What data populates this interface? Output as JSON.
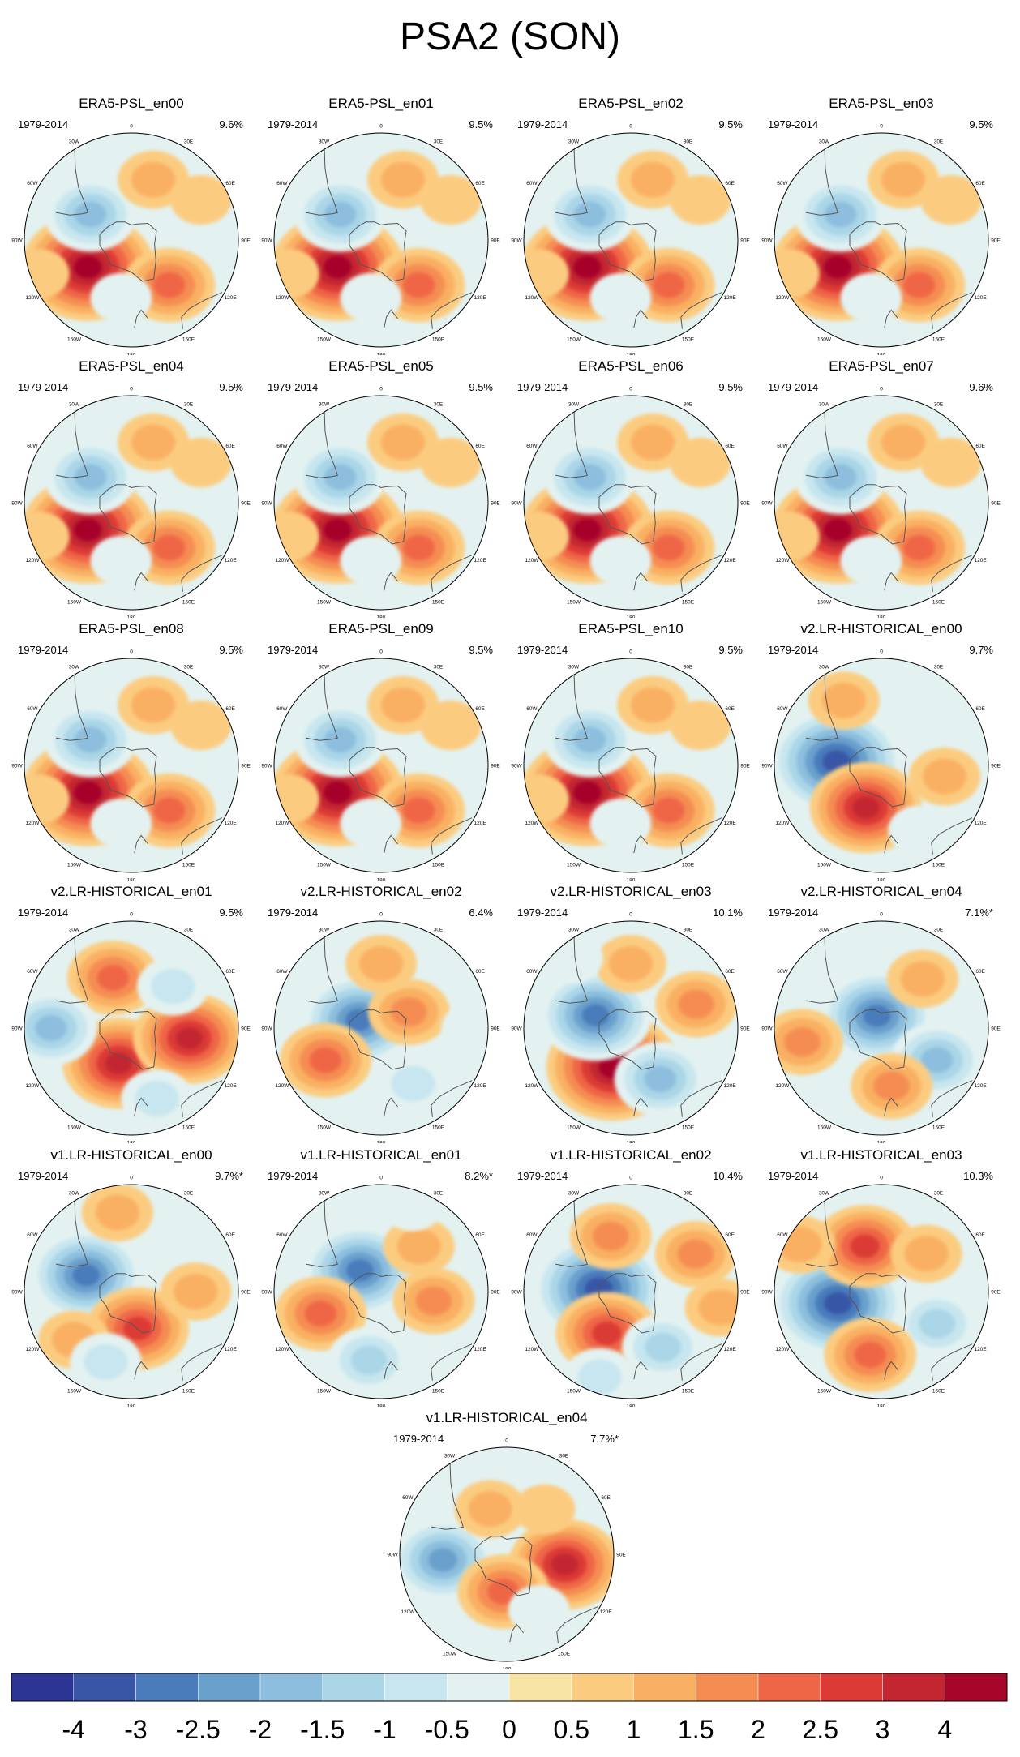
{
  "title": "PSA2 (SON)",
  "period": "1979-2014",
  "longitude_labels": [
    "0",
    "30E",
    "60E",
    "90E",
    "120E",
    "150E",
    "180",
    "150W",
    "120W",
    "90W",
    "60W",
    "30W"
  ],
  "chart_data": {
    "type": "heatmap",
    "projection": "south-polar-stereographic",
    "title": "PSA2 (SON)",
    "panels": [
      {
        "name": "ERA5-PSL_en00",
        "period": "1979-2014",
        "variance": "9.6%",
        "features": [
          {
            "lon": -122,
            "r": 0.48,
            "v": 4
          },
          {
            "lon": -58,
            "r": 0.45,
            "v": -2
          },
          {
            "lon": 140,
            "r": 0.55,
            "v": 2
          },
          {
            "lon": -170,
            "r": 0.55,
            "v": -0.5
          },
          {
            "lon": 20,
            "r": 0.6,
            "v": 1
          },
          {
            "lon": 60,
            "r": 0.75,
            "v": 0.5
          },
          {
            "lon": -110,
            "r": 0.92,
            "v": 0.5
          }
        ]
      },
      {
        "name": "ERA5-PSL_en01",
        "period": "1979-2014",
        "variance": "9.5%",
        "features": [
          {
            "lon": -122,
            "r": 0.48,
            "v": 4
          },
          {
            "lon": -58,
            "r": 0.45,
            "v": -2
          },
          {
            "lon": 140,
            "r": 0.55,
            "v": 2
          },
          {
            "lon": -170,
            "r": 0.55,
            "v": -0.5
          },
          {
            "lon": 20,
            "r": 0.6,
            "v": 1
          },
          {
            "lon": 60,
            "r": 0.75,
            "v": 0.5
          },
          {
            "lon": -110,
            "r": 0.92,
            "v": 0.5
          }
        ]
      },
      {
        "name": "ERA5-PSL_en02",
        "period": "1979-2014",
        "variance": "9.5%",
        "features": [
          {
            "lon": -122,
            "r": 0.48,
            "v": 4
          },
          {
            "lon": -58,
            "r": 0.45,
            "v": -2
          },
          {
            "lon": 140,
            "r": 0.55,
            "v": 2
          },
          {
            "lon": -170,
            "r": 0.55,
            "v": -0.5
          },
          {
            "lon": 20,
            "r": 0.6,
            "v": 1
          },
          {
            "lon": 60,
            "r": 0.75,
            "v": 0.5
          },
          {
            "lon": -110,
            "r": 0.92,
            "v": 0.5
          }
        ]
      },
      {
        "name": "ERA5-PSL_en03",
        "period": "1979-2014",
        "variance": "9.5%",
        "features": [
          {
            "lon": -122,
            "r": 0.48,
            "v": 4
          },
          {
            "lon": -58,
            "r": 0.45,
            "v": -2
          },
          {
            "lon": 140,
            "r": 0.55,
            "v": 2
          },
          {
            "lon": -170,
            "r": 0.55,
            "v": -0.5
          },
          {
            "lon": 20,
            "r": 0.6,
            "v": 1
          },
          {
            "lon": 60,
            "r": 0.75,
            "v": 0.5
          },
          {
            "lon": -110,
            "r": 0.92,
            "v": 0.5
          }
        ]
      },
      {
        "name": "ERA5-PSL_en04",
        "period": "1979-2014",
        "variance": "9.5%",
        "features": [
          {
            "lon": -122,
            "r": 0.48,
            "v": 4
          },
          {
            "lon": -58,
            "r": 0.45,
            "v": -2
          },
          {
            "lon": 140,
            "r": 0.55,
            "v": 2
          },
          {
            "lon": -170,
            "r": 0.55,
            "v": -0.5
          },
          {
            "lon": 20,
            "r": 0.6,
            "v": 1
          },
          {
            "lon": 60,
            "r": 0.75,
            "v": 0.5
          },
          {
            "lon": -110,
            "r": 0.92,
            "v": 0.5
          }
        ]
      },
      {
        "name": "ERA5-PSL_en05",
        "period": "1979-2014",
        "variance": "9.5%",
        "features": [
          {
            "lon": -122,
            "r": 0.48,
            "v": 4
          },
          {
            "lon": -58,
            "r": 0.45,
            "v": -2
          },
          {
            "lon": 140,
            "r": 0.55,
            "v": 2
          },
          {
            "lon": -170,
            "r": 0.55,
            "v": -0.5
          },
          {
            "lon": 20,
            "r": 0.6,
            "v": 1
          },
          {
            "lon": 60,
            "r": 0.75,
            "v": 0.5
          },
          {
            "lon": -110,
            "r": 0.92,
            "v": 0.5
          }
        ]
      },
      {
        "name": "ERA5-PSL_en06",
        "period": "1979-2014",
        "variance": "9.5%",
        "features": [
          {
            "lon": -122,
            "r": 0.48,
            "v": 4
          },
          {
            "lon": -58,
            "r": 0.45,
            "v": -2
          },
          {
            "lon": 140,
            "r": 0.55,
            "v": 2
          },
          {
            "lon": -170,
            "r": 0.55,
            "v": -0.5
          },
          {
            "lon": 20,
            "r": 0.6,
            "v": 1
          },
          {
            "lon": 60,
            "r": 0.75,
            "v": 0.5
          },
          {
            "lon": -110,
            "r": 0.92,
            "v": 0.5
          }
        ]
      },
      {
        "name": "ERA5-PSL_en07",
        "period": "1979-2014",
        "variance": "9.6%",
        "features": [
          {
            "lon": -122,
            "r": 0.48,
            "v": 4
          },
          {
            "lon": -58,
            "r": 0.45,
            "v": -2
          },
          {
            "lon": 140,
            "r": 0.55,
            "v": 2
          },
          {
            "lon": -170,
            "r": 0.55,
            "v": -0.5
          },
          {
            "lon": 20,
            "r": 0.6,
            "v": 1
          },
          {
            "lon": 60,
            "r": 0.75,
            "v": 0.5
          },
          {
            "lon": -110,
            "r": 0.92,
            "v": 0.5
          }
        ]
      },
      {
        "name": "ERA5-PSL_en08",
        "period": "1979-2014",
        "variance": "9.5%",
        "features": [
          {
            "lon": -122,
            "r": 0.48,
            "v": 4
          },
          {
            "lon": -58,
            "r": 0.45,
            "v": -2
          },
          {
            "lon": 140,
            "r": 0.55,
            "v": 2
          },
          {
            "lon": -170,
            "r": 0.55,
            "v": -0.5
          },
          {
            "lon": 20,
            "r": 0.6,
            "v": 1
          },
          {
            "lon": 60,
            "r": 0.75,
            "v": 0.5
          },
          {
            "lon": -110,
            "r": 0.92,
            "v": 0.5
          }
        ]
      },
      {
        "name": "ERA5-PSL_en09",
        "period": "1979-2014",
        "variance": "9.5%",
        "features": [
          {
            "lon": -122,
            "r": 0.48,
            "v": 4
          },
          {
            "lon": -58,
            "r": 0.45,
            "v": -2
          },
          {
            "lon": 140,
            "r": 0.55,
            "v": 2
          },
          {
            "lon": -170,
            "r": 0.55,
            "v": -0.5
          },
          {
            "lon": 20,
            "r": 0.6,
            "v": 1
          },
          {
            "lon": 60,
            "r": 0.75,
            "v": 0.5
          },
          {
            "lon": -110,
            "r": 0.92,
            "v": 0.5
          }
        ]
      },
      {
        "name": "ERA5-PSL_en10",
        "period": "1979-2014",
        "variance": "9.5%",
        "features": [
          {
            "lon": -122,
            "r": 0.48,
            "v": 4
          },
          {
            "lon": -58,
            "r": 0.45,
            "v": -2
          },
          {
            "lon": 140,
            "r": 0.55,
            "v": 2
          },
          {
            "lon": -170,
            "r": 0.55,
            "v": -0.5
          },
          {
            "lon": 20,
            "r": 0.6,
            "v": 1
          },
          {
            "lon": 60,
            "r": 0.75,
            "v": 0.5
          },
          {
            "lon": -110,
            "r": 0.92,
            "v": 0.5
          }
        ]
      },
      {
        "name": "v2.LR-HISTORICAL_en00",
        "period": "1979-2014",
        "variance": "9.7%",
        "features": [
          {
            "lon": -85,
            "r": 0.42,
            "v": -4
          },
          {
            "lon": -160,
            "r": 0.42,
            "v": 3
          },
          {
            "lon": 40,
            "r": 0.7,
            "v": -0.5
          },
          {
            "lon": 100,
            "r": 0.6,
            "v": 1
          },
          {
            "lon": -30,
            "r": 0.7,
            "v": 1
          },
          {
            "lon": 150,
            "r": 0.7,
            "v": -0.5
          }
        ]
      },
      {
        "name": "v2.LR-HISTORICAL_en01",
        "period": "1979-2014",
        "variance": "9.5%",
        "features": [
          {
            "lon": -160,
            "r": 0.35,
            "v": 3
          },
          {
            "lon": 100,
            "r": 0.55,
            "v": 3
          },
          {
            "lon": -20,
            "r": 0.5,
            "v": 2
          },
          {
            "lon": -90,
            "r": 0.75,
            "v": -2
          },
          {
            "lon": 45,
            "r": 0.55,
            "v": -1
          },
          {
            "lon": 160,
            "r": 0.7,
            "v": -1
          }
        ]
      },
      {
        "name": "v2.LR-HISTORICAL_en02",
        "period": "1979-2014",
        "variance": "6.4%",
        "features": [
          {
            "lon": -70,
            "r": 0.22,
            "v": -3
          },
          {
            "lon": 60,
            "r": 0.3,
            "v": 1.5
          },
          {
            "lon": -120,
            "r": 0.6,
            "v": 2
          },
          {
            "lon": 0,
            "r": 0.6,
            "v": 1
          },
          {
            "lon": 150,
            "r": 0.6,
            "v": -1
          },
          {
            "lon": 90,
            "r": 0.85,
            "v": -0.5
          }
        ]
      },
      {
        "name": "v2.LR-HISTORICAL_en03",
        "period": "1979-2014",
        "variance": "10.1%",
        "features": [
          {
            "lon": -155,
            "r": 0.4,
            "v": 4
          },
          {
            "lon": -70,
            "r": 0.35,
            "v": -3
          },
          {
            "lon": 150,
            "r": 0.55,
            "v": -2
          },
          {
            "lon": 0,
            "r": 0.6,
            "v": 1
          },
          {
            "lon": 70,
            "r": 0.65,
            "v": 1.5
          },
          {
            "lon": -40,
            "r": 0.85,
            "v": -0.5
          }
        ]
      },
      {
        "name": "v2.LR-HISTORICAL_en04",
        "period": "1979-2014",
        "variance": "7.1%*",
        "features": [
          {
            "lon": -20,
            "r": 0.12,
            "v": -3
          },
          {
            "lon": -100,
            "r": 0.75,
            "v": 1.5
          },
          {
            "lon": 120,
            "r": 0.6,
            "v": -2
          },
          {
            "lon": 40,
            "r": 0.6,
            "v": 1
          },
          {
            "lon": 170,
            "r": 0.55,
            "v": 1.5
          }
        ]
      },
      {
        "name": "v1.LR-HISTORICAL_en00",
        "period": "1979-2014",
        "variance": "9.7%*",
        "features": [
          {
            "lon": -70,
            "r": 0.45,
            "v": -3
          },
          {
            "lon": 170,
            "r": 0.35,
            "v": 2.5
          },
          {
            "lon": -10,
            "r": 0.75,
            "v": 1
          },
          {
            "lon": 90,
            "r": 0.6,
            "v": 1
          },
          {
            "lon": -130,
            "r": 0.7,
            "v": 1
          },
          {
            "lon": -160,
            "r": 0.7,
            "v": -1
          }
        ]
      },
      {
        "name": "v1.LR-HISTORICAL_en01",
        "period": "1979-2014",
        "variance": "8.2%*",
        "features": [
          {
            "lon": -45,
            "r": 0.28,
            "v": -3
          },
          {
            "lon": -110,
            "r": 0.6,
            "v": 2
          },
          {
            "lon": 40,
            "r": 0.55,
            "v": 1
          },
          {
            "lon": 100,
            "r": 0.5,
            "v": 1.5
          },
          {
            "lon": -170,
            "r": 0.65,
            "v": -1.5
          },
          {
            "lon": 20,
            "r": 0.85,
            "v": -0.5
          }
        ]
      },
      {
        "name": "v1.LR-HISTORICAL_en02",
        "period": "1979-2014",
        "variance": "10.4%",
        "features": [
          {
            "lon": -85,
            "r": 0.3,
            "v": -4
          },
          {
            "lon": -150,
            "r": 0.45,
            "v": 2.5
          },
          {
            "lon": -20,
            "r": 0.55,
            "v": 1.5
          },
          {
            "lon": 60,
            "r": 0.7,
            "v": 1.5
          },
          {
            "lon": 150,
            "r": 0.6,
            "v": -1.5
          },
          {
            "lon": -160,
            "r": 0.85,
            "v": -1
          },
          {
            "lon": 100,
            "r": 0.85,
            "v": 1
          }
        ]
      },
      {
        "name": "v1.LR-HISTORICAL_en03",
        "period": "1979-2014",
        "variance": "10.3%",
        "features": [
          {
            "lon": -105,
            "r": 0.42,
            "v": -4
          },
          {
            "lon": -20,
            "r": 0.45,
            "v": 2.5
          },
          {
            "lon": 120,
            "r": 0.6,
            "v": -1.5
          },
          {
            "lon": -170,
            "r": 0.6,
            "v": 2
          },
          {
            "lon": 50,
            "r": 0.55,
            "v": 1
          },
          {
            "lon": -60,
            "r": 0.88,
            "v": 1
          }
        ]
      },
      {
        "name": "v1.LR-HISTORICAL_en04",
        "period": "1979-2014",
        "variance": "7.7%*",
        "features": [
          {
            "lon": -95,
            "r": 0.6,
            "v": -2.5
          },
          {
            "lon": 100,
            "r": 0.55,
            "v": 3
          },
          {
            "lon": -175,
            "r": 0.35,
            "v": 2
          },
          {
            "lon": -20,
            "r": 0.45,
            "v": 1
          },
          {
            "lon": 40,
            "r": 0.55,
            "v": 0.5
          },
          {
            "lon": 150,
            "r": 0.6,
            "v": -0.5
          }
        ]
      }
    ],
    "colorbar": {
      "levels": [
        "-4",
        "-3",
        "-2.5",
        "-2",
        "-1.5",
        "-1",
        "-0.5",
        "0",
        "0.5",
        "1",
        "1.5",
        "2",
        "2.5",
        "3",
        "4"
      ],
      "colors": [
        "#2c3593",
        "#3956a6",
        "#4a7bbb",
        "#6aa0cc",
        "#8dbedd",
        "#aad6e8",
        "#c8e6ef",
        "#e3f2f1",
        "#f8e5a6",
        "#fbcc80",
        "#f9b064",
        "#f58d52",
        "#ef6646",
        "#db3b34",
        "#c32630",
        "#a6062a"
      ]
    }
  }
}
